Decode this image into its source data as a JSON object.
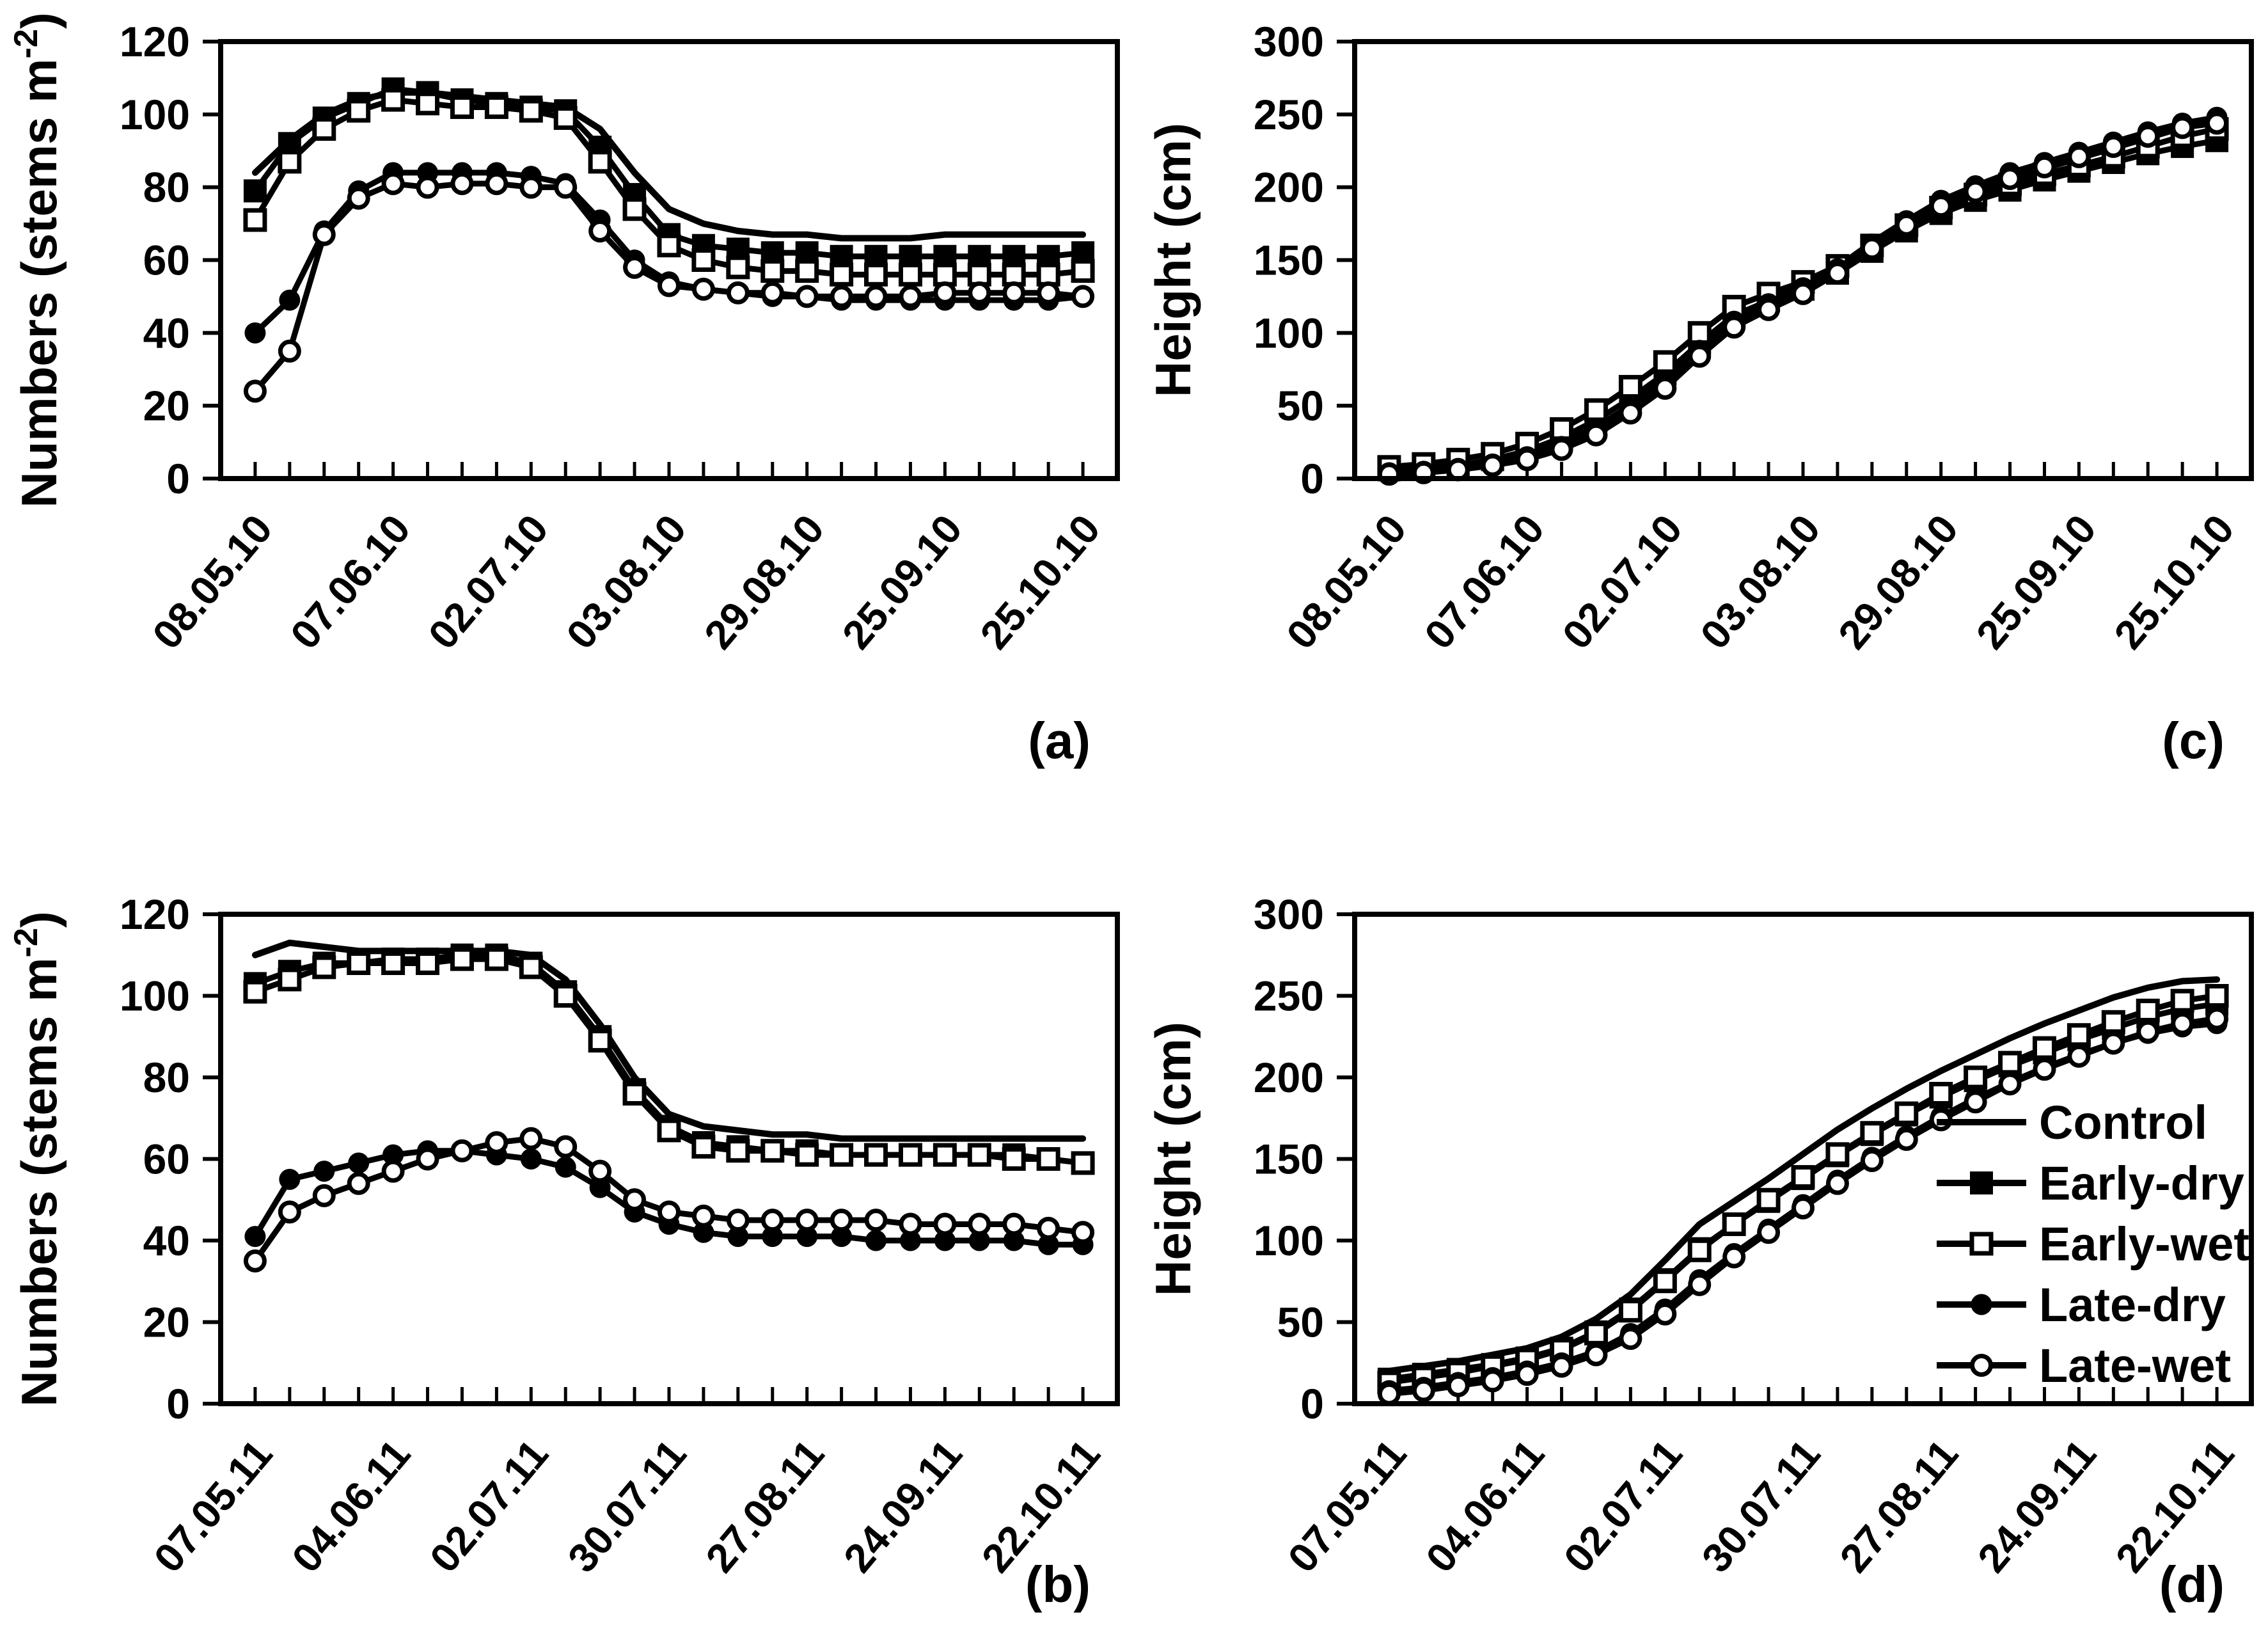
{
  "colors": {
    "ink": "#000000",
    "background": "#ffffff"
  },
  "legend": {
    "host_panel": "(d)",
    "items": [
      {
        "label": "Control",
        "marker": "none"
      },
      {
        "label": "Early-dry",
        "marker": "square-filled"
      },
      {
        "label": "Early-wet",
        "marker": "square-open"
      },
      {
        "label": "Late-dry",
        "marker": "circle-filled"
      },
      {
        "label": "Late-wet",
        "marker": "circle-open"
      }
    ]
  },
  "chart_data": [
    {
      "type": "line",
      "panel": "(a)",
      "position": "top-left",
      "ylabel": "Numbers (stems m^-2)",
      "ylabel_parts": {
        "main": "Numbers (stems m",
        "sup": "-2",
        "end": ")"
      },
      "ylim": [
        0,
        120
      ],
      "yticks": [
        0,
        20,
        40,
        60,
        80,
        100,
        120
      ],
      "x_tick_count": 25,
      "x_label_every": 4,
      "x_labels": [
        "08.05.10",
        "07.06.10",
        "02.07.10",
        "03.08.10",
        "29.08.10",
        "25.09.10",
        "25.10.10"
      ],
      "grid": false,
      "series": [
        {
          "name": "Control",
          "marker": "none",
          "values": [
            84,
            93,
            100,
            104,
            106,
            106,
            105,
            104,
            103,
            102,
            96,
            84,
            74,
            70,
            68,
            67,
            67,
            66,
            66,
            66,
            67,
            67,
            67,
            67,
            67
          ]
        },
        {
          "name": "Early-dry",
          "marker": "square-filled",
          "values": [
            79,
            92,
            99,
            103,
            107,
            106,
            104,
            103,
            102,
            101,
            91,
            78,
            67,
            64,
            63,
            62,
            62,
            61,
            61,
            61,
            61,
            61,
            61,
            61,
            62
          ]
        },
        {
          "name": "Early-wet",
          "marker": "square-open",
          "values": [
            71,
            87,
            96,
            101,
            104,
            103,
            102,
            102,
            101,
            99,
            87,
            74,
            64,
            60,
            58,
            57,
            57,
            56,
            56,
            56,
            56,
            56,
            56,
            56,
            57
          ]
        },
        {
          "name": "Late-dry",
          "marker": "circle-filled",
          "values": [
            40,
            49,
            68,
            79,
            84,
            84,
            84,
            84,
            83,
            81,
            71,
            60,
            54,
            52,
            51,
            50,
            50,
            49,
            49,
            49,
            49,
            49,
            49,
            49,
            50
          ]
        },
        {
          "name": "Late-wet",
          "marker": "circle-open",
          "values": [
            24,
            35,
            67,
            77,
            81,
            80,
            81,
            81,
            80,
            80,
            68,
            58,
            53,
            52,
            51,
            51,
            50,
            50,
            50,
            50,
            51,
            51,
            51,
            51,
            50
          ]
        }
      ]
    },
    {
      "type": "line",
      "panel": "(c)",
      "position": "top-right",
      "ylabel": "Height (cm)",
      "ylabel_parts": {
        "main": "Height (cm)",
        "sup": "",
        "end": ""
      },
      "ylim": [
        0,
        300
      ],
      "yticks": [
        0,
        50,
        100,
        150,
        200,
        250,
        300
      ],
      "x_tick_count": 25,
      "x_label_every": 4,
      "x_labels": [
        "08.05.10",
        "07.06.10",
        "02.07.10",
        "03.08.10",
        "29.08.10",
        "25.09.10",
        "25.10.10"
      ],
      "grid": false,
      "series": [
        {
          "name": "Control",
          "marker": "none",
          "values": [
            5,
            6,
            8,
            11,
            16,
            24,
            35,
            50,
            68,
            90,
            110,
            122,
            132,
            145,
            162,
            177,
            189,
            198,
            206,
            213,
            220,
            227,
            234,
            241,
            247
          ]
        },
        {
          "name": "Early-dry",
          "marker": "square-filled",
          "values": [
            6,
            7,
            9,
            13,
            19,
            28,
            40,
            55,
            72,
            93,
            112,
            122,
            130,
            141,
            156,
            170,
            182,
            191,
            198,
            205,
            211,
            217,
            223,
            228,
            232
          ]
        },
        {
          "name": "Early-wet",
          "marker": "square-open",
          "values": [
            8,
            10,
            13,
            17,
            24,
            34,
            47,
            63,
            80,
            100,
            118,
            127,
            135,
            146,
            160,
            174,
            186,
            195,
            202,
            209,
            215,
            221,
            228,
            235,
            240
          ]
        },
        {
          "name": "Late-dry",
          "marker": "circle-filled",
          "values": [
            4,
            5,
            7,
            10,
            15,
            22,
            33,
            48,
            66,
            88,
            108,
            120,
            131,
            144,
            161,
            177,
            191,
            201,
            210,
            217,
            224,
            231,
            238,
            244,
            248
          ]
        },
        {
          "name": "Late-wet",
          "marker": "circle-open",
          "values": [
            3,
            4,
            6,
            9,
            13,
            20,
            30,
            45,
            62,
            84,
            104,
            116,
            127,
            141,
            158,
            174,
            187,
            197,
            206,
            214,
            221,
            228,
            235,
            241,
            244
          ]
        }
      ]
    },
    {
      "type": "line",
      "panel": "(b)",
      "position": "bottom-left",
      "ylabel": "Numbers (stems m^-2)",
      "ylabel_parts": {
        "main": "Numbers (stems m",
        "sup": "-2",
        "end": ")"
      },
      "ylim": [
        0,
        120
      ],
      "yticks": [
        0,
        20,
        40,
        60,
        80,
        100,
        120
      ],
      "x_tick_count": 25,
      "x_label_every": 4,
      "x_labels": [
        "07.05.11",
        "04.06.11",
        "02.07.11",
        "30.07.11",
        "27.08.11",
        "24.09.11",
        "22.10.11"
      ],
      "grid": false,
      "series": [
        {
          "name": "Control",
          "marker": "none",
          "values": [
            110,
            113,
            112,
            111,
            111,
            111,
            111,
            111,
            110,
            104,
            93,
            80,
            71,
            68,
            67,
            66,
            66,
            65,
            65,
            65,
            65,
            65,
            65,
            65,
            65
          ]
        },
        {
          "name": "Early-dry",
          "marker": "square-filled",
          "values": [
            103,
            106,
            108,
            108,
            109,
            109,
            110,
            110,
            108,
            101,
            90,
            77,
            68,
            64,
            63,
            62,
            62,
            61,
            61,
            61,
            61,
            61,
            61,
            60,
            59
          ]
        },
        {
          "name": "Early-wet",
          "marker": "square-open",
          "values": [
            101,
            104,
            107,
            108,
            108,
            108,
            109,
            109,
            107,
            100,
            89,
            76,
            67,
            63,
            62,
            62,
            61,
            61,
            61,
            61,
            61,
            61,
            60,
            60,
            59
          ]
        },
        {
          "name": "Late-dry",
          "marker": "circle-filled",
          "values": [
            41,
            55,
            57,
            59,
            61,
            62,
            62,
            61,
            60,
            58,
            53,
            47,
            44,
            42,
            41,
            41,
            41,
            41,
            40,
            40,
            40,
            40,
            40,
            39,
            39
          ]
        },
        {
          "name": "Late-wet",
          "marker": "circle-open",
          "values": [
            35,
            47,
            51,
            54,
            57,
            60,
            62,
            64,
            65,
            63,
            57,
            50,
            47,
            46,
            45,
            45,
            45,
            45,
            45,
            44,
            44,
            44,
            44,
            43,
            42
          ]
        }
      ]
    },
    {
      "type": "line",
      "panel": "(d)",
      "position": "bottom-right",
      "ylabel": "Height (cm)",
      "ylabel_parts": {
        "main": "Height (cm)",
        "sup": "",
        "end": ""
      },
      "ylim": [
        0,
        300
      ],
      "yticks": [
        0,
        50,
        100,
        150,
        200,
        250,
        300
      ],
      "x_tick_count": 25,
      "x_label_every": 4,
      "x_labels": [
        "07.05.11",
        "04.06.11",
        "02.07.11",
        "30.07.11",
        "27.08.11",
        "24.09.11",
        "22.10.11"
      ],
      "grid": false,
      "series": [
        {
          "name": "Control",
          "marker": "none",
          "values": [
            20,
            23,
            26,
            30,
            34,
            41,
            52,
            67,
            88,
            110,
            124,
            138,
            153,
            168,
            181,
            193,
            204,
            214,
            224,
            233,
            241,
            249,
            255,
            259,
            260
          ]
        },
        {
          "name": "Early-dry",
          "marker": "square-filled",
          "values": [
            15,
            18,
            21,
            24,
            28,
            34,
            44,
            58,
            76,
            95,
            110,
            124,
            138,
            152,
            165,
            177,
            188,
            198,
            207,
            215,
            223,
            230,
            237,
            242,
            245
          ]
        },
        {
          "name": "Early-wet",
          "marker": "square-open",
          "values": [
            13,
            16,
            19,
            23,
            27,
            33,
            43,
            57,
            75,
            94,
            110,
            125,
            139,
            153,
            166,
            178,
            190,
            200,
            209,
            218,
            226,
            234,
            241,
            247,
            250
          ]
        },
        {
          "name": "Late-dry",
          "marker": "circle-filled",
          "values": [
            8,
            10,
            13,
            16,
            20,
            25,
            32,
            43,
            58,
            76,
            92,
            107,
            122,
            137,
            151,
            164,
            176,
            187,
            197,
            206,
            214,
            221,
            227,
            231,
            233
          ]
        },
        {
          "name": "Late-wet",
          "marker": "circle-open",
          "values": [
            6,
            8,
            11,
            14,
            18,
            23,
            30,
            40,
            55,
            73,
            90,
            105,
            120,
            135,
            149,
            162,
            174,
            185,
            196,
            205,
            213,
            221,
            228,
            233,
            236
          ]
        }
      ]
    }
  ]
}
